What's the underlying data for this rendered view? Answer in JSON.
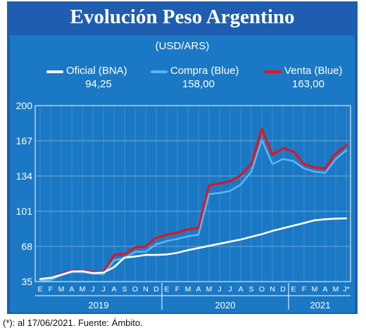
{
  "title": "Evolución Peso Argentino",
  "footnote": "(*): al 17/06/2021. Fuente: Ámbito.",
  "colors": {
    "frame": "#1f5db0",
    "panel": "#1b78c4",
    "oficial": "#ffffff",
    "compra": "#5ab4ee",
    "venta": "#e0151f"
  },
  "chart_data": {
    "type": "line",
    "subtitle": "(USD/ARS)",
    "ylim": [
      35,
      200
    ],
    "yticks": [
      35,
      68,
      101,
      134,
      167,
      200
    ],
    "x_month_labels": [
      "E",
      "F",
      "M",
      "A",
      "M",
      "J",
      "J",
      "A",
      "S",
      "O",
      "N",
      "D",
      "E",
      "F",
      "M",
      "A",
      "M",
      "J",
      "J",
      "A",
      "S",
      "O",
      "N",
      "D",
      "E",
      "F",
      "M",
      "A",
      "M",
      "J*"
    ],
    "x_year_labels": [
      "2019",
      "2020",
      "2021"
    ],
    "grid": true,
    "legend_placement": "top",
    "series": [
      {
        "name": "Oficial (BNA)",
        "last_value": "94,25",
        "values": [
          37.5,
          38.5,
          41.5,
          44.5,
          44.8,
          43.0,
          43.5,
          48.5,
          57.5,
          58.5,
          60.0,
          60.0,
          60.5,
          62.0,
          64.5,
          66.5,
          68.5,
          70.5,
          72.5,
          74.5,
          77.0,
          79.5,
          82.5,
          85.0,
          87.5,
          90.0,
          92.5,
          93.5,
          94.0,
          94.25
        ]
      },
      {
        "name": "Compra (Blue)",
        "last_value": "158,00",
        "values": [
          36.0,
          36.5,
          41.0,
          44.0,
          44.0,
          42.5,
          42.0,
          55.0,
          57.0,
          63.0,
          63.0,
          70.0,
          73.0,
          75.0,
          77.5,
          79.0,
          117.0,
          118.0,
          120.0,
          126.0,
          138.0,
          168.0,
          145.0,
          150.0,
          148.0,
          141.0,
          138.0,
          137.0,
          150.0,
          158.0
        ]
      },
      {
        "name": "Venta (Blue)",
        "last_value": "163,00",
        "values": [
          38.0,
          38.0,
          42.0,
          45.0,
          45.0,
          44.0,
          44.0,
          60.0,
          61.0,
          67.0,
          68.0,
          76.0,
          79.0,
          81.0,
          84.0,
          85.0,
          125.0,
          127.0,
          129.0,
          135.0,
          145.0,
          178.0,
          154.0,
          160.0,
          157.0,
          145.0,
          142.0,
          141.0,
          155.0,
          163.0
        ]
      }
    ]
  }
}
